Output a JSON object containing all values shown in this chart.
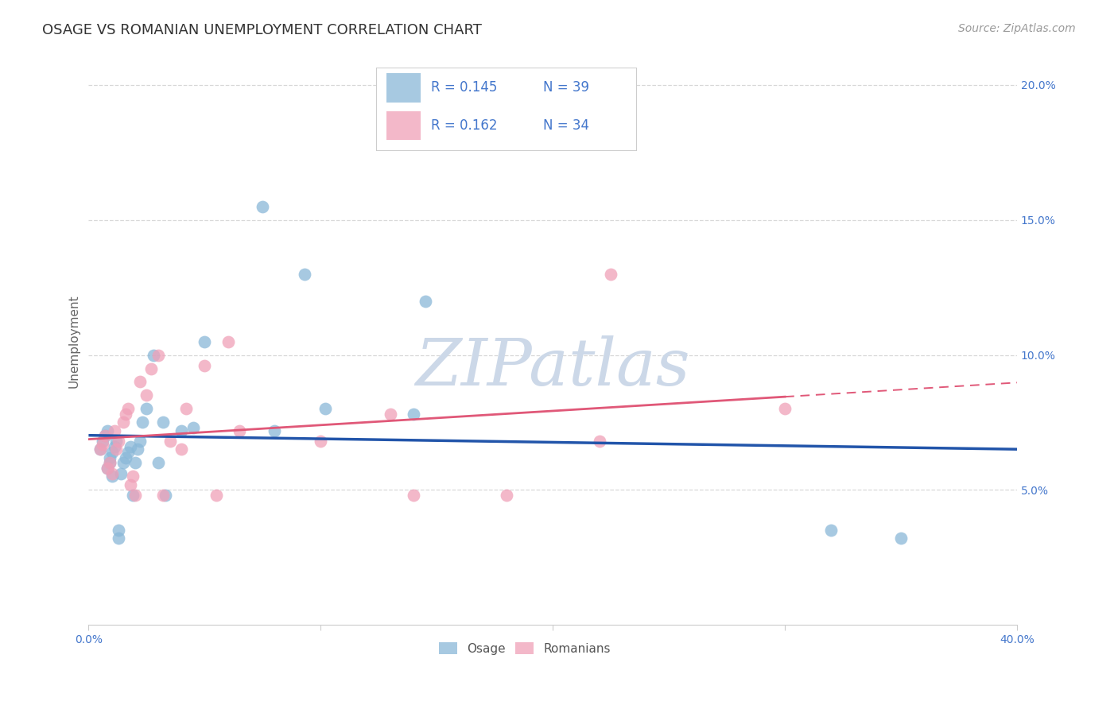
{
  "title": "OSAGE VS ROMANIAN UNEMPLOYMENT CORRELATION CHART",
  "source": "Source: ZipAtlas.com",
  "ylabel": "Unemployment",
  "xlim": [
    0.0,
    0.4
  ],
  "ylim": [
    0.0,
    0.21
  ],
  "xticks": [
    0.0,
    0.1,
    0.2,
    0.3,
    0.4
  ],
  "xtick_labels": [
    "0.0%",
    "",
    "",
    "",
    "40.0%"
  ],
  "yticks": [
    0.05,
    0.1,
    0.15,
    0.2
  ],
  "ytick_labels": [
    "5.0%",
    "10.0%",
    "15.0%",
    "20.0%"
  ],
  "osage_color": "#8ab8d8",
  "romanian_color": "#f0a0b8",
  "trendline_osage_color": "#2255aa",
  "trendline_romanian_color": "#e05878",
  "background_color": "#ffffff",
  "grid_color": "#d8d8d8",
  "legend_r_osage": "R = 0.145",
  "legend_n_osage": "N = 39",
  "legend_r_romanian": "R = 0.162",
  "legend_n_romanian": "N = 34",
  "osage_x": [
    0.005,
    0.006,
    0.007,
    0.008,
    0.008,
    0.009,
    0.009,
    0.01,
    0.01,
    0.011,
    0.012,
    0.013,
    0.013,
    0.014,
    0.015,
    0.016,
    0.017,
    0.018,
    0.019,
    0.02,
    0.021,
    0.022,
    0.023,
    0.025,
    0.028,
    0.03,
    0.032,
    0.033,
    0.04,
    0.045,
    0.05,
    0.075,
    0.08,
    0.093,
    0.102,
    0.14,
    0.145,
    0.32,
    0.35
  ],
  "osage_y": [
    0.065,
    0.068,
    0.07,
    0.072,
    0.058,
    0.06,
    0.062,
    0.064,
    0.055,
    0.066,
    0.068,
    0.035,
    0.032,
    0.056,
    0.06,
    0.062,
    0.064,
    0.066,
    0.048,
    0.06,
    0.065,
    0.068,
    0.075,
    0.08,
    0.1,
    0.06,
    0.075,
    0.048,
    0.072,
    0.073,
    0.105,
    0.155,
    0.072,
    0.13,
    0.08,
    0.078,
    0.12,
    0.035,
    0.032
  ],
  "romanian_x": [
    0.005,
    0.006,
    0.007,
    0.008,
    0.009,
    0.01,
    0.011,
    0.012,
    0.013,
    0.015,
    0.016,
    0.017,
    0.018,
    0.019,
    0.02,
    0.022,
    0.025,
    0.027,
    0.03,
    0.032,
    0.035,
    0.04,
    0.042,
    0.05,
    0.055,
    0.06,
    0.065,
    0.1,
    0.13,
    0.14,
    0.18,
    0.22,
    0.225,
    0.3
  ],
  "romanian_y": [
    0.065,
    0.067,
    0.07,
    0.058,
    0.06,
    0.056,
    0.072,
    0.065,
    0.068,
    0.075,
    0.078,
    0.08,
    0.052,
    0.055,
    0.048,
    0.09,
    0.085,
    0.095,
    0.1,
    0.048,
    0.068,
    0.065,
    0.08,
    0.096,
    0.048,
    0.105,
    0.072,
    0.068,
    0.078,
    0.048,
    0.048,
    0.068,
    0.13,
    0.08
  ],
  "title_fontsize": 13,
  "source_fontsize": 10,
  "ylabel_fontsize": 11,
  "tick_fontsize": 10,
  "legend_fontsize": 12,
  "watermark_text": "ZIPatlas",
  "watermark_color": "#ccd8e8"
}
